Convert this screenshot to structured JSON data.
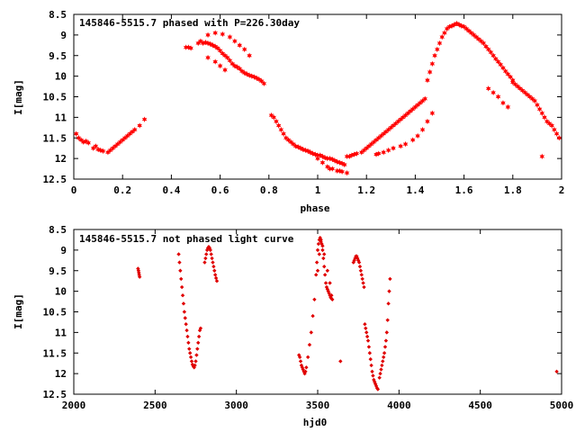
{
  "chart_data": [
    {
      "type": "scatter",
      "title": "145846-5515.7 phased with P=226.30day",
      "xlabel": "phase",
      "ylabel": "I[mag]",
      "xlim": [
        0,
        2
      ],
      "ylim": [
        12.5,
        8.5
      ],
      "y_inverted": true,
      "x_ticks": [
        "0",
        "0.2",
        "0.4",
        "0.6",
        "0.8",
        "1",
        "1.2",
        "1.4",
        "1.6",
        "1.8",
        "2"
      ],
      "y_ticks": [
        "8.5",
        "9",
        "9.5",
        "10",
        "10.5",
        "11",
        "11.5",
        "12",
        "12.5"
      ],
      "marker_color": "#ff0000",
      "grid": false,
      "series": [
        {
          "x": [
            0.01,
            0.02,
            0.03,
            0.04,
            0.05,
            0.06,
            0.08,
            0.09,
            0.1,
            0.11,
            0.12,
            0.14,
            0.15,
            0.16,
            0.17,
            0.18,
            0.19,
            0.2,
            0.21,
            0.22,
            0.23,
            0.24,
            0.25,
            0.27,
            0.29,
            0.46,
            0.47,
            0.48,
            0.51,
            0.52,
            0.53,
            0.54,
            0.55,
            0.56,
            0.57,
            0.58,
            0.59,
            0.6,
            0.61,
            0.62,
            0.63,
            0.64,
            0.65,
            0.66,
            0.67,
            0.68,
            0.69,
            0.7,
            0.71,
            0.72,
            0.73,
            0.74,
            0.75,
            0.76,
            0.77,
            0.78,
            0.55,
            0.58,
            0.61,
            0.64,
            0.66,
            0.68,
            0.7,
            0.72,
            0.55,
            0.58,
            0.6,
            0.62,
            0.81,
            0.82,
            0.83,
            0.84,
            0.85,
            0.86,
            0.87,
            0.88,
            0.89,
            0.9,
            0.91,
            0.92,
            0.93,
            0.94,
            0.95,
            0.96,
            0.97,
            0.98,
            0.99,
            1.0,
            1.01,
            1.02,
            1.03,
            1.04,
            1.05,
            1.06,
            1.07,
            1.08,
            1.09,
            1.1,
            1.11,
            1.0,
            1.02,
            1.04,
            1.06,
            1.08,
            1.1,
            1.12,
            1.05,
            1.09,
            1.12,
            1.13,
            1.14,
            1.15,
            1.16,
            1.18,
            1.19,
            1.2,
            1.21,
            1.22,
            1.23,
            1.24,
            1.25,
            1.26,
            1.27,
            1.28,
            1.29,
            1.3,
            1.31,
            1.32,
            1.33,
            1.34,
            1.35,
            1.36,
            1.37,
            1.38,
            1.39,
            1.4,
            1.41,
            1.42,
            1.43,
            1.44,
            1.24,
            1.25,
            1.27,
            1.29,
            1.31,
            1.34,
            1.36,
            1.39,
            1.41,
            1.43,
            1.45,
            1.47,
            1.45,
            1.46,
            1.47,
            1.48,
            1.49,
            1.5,
            1.51,
            1.52,
            1.53,
            1.54,
            1.55,
            1.56,
            1.57,
            1.58,
            1.59,
            1.6,
            1.61,
            1.62,
            1.63,
            1.64,
            1.65,
            1.66,
            1.67,
            1.68,
            1.69,
            1.7,
            1.71,
            1.72,
            1.73,
            1.74,
            1.75,
            1.76,
            1.77,
            1.78,
            1.79,
            1.8,
            1.8,
            1.81,
            1.82,
            1.83,
            1.84,
            1.85,
            1.86,
            1.87,
            1.88,
            1.89,
            1.9,
            1.91,
            1.92,
            1.93,
            1.94,
            1.95,
            1.96,
            1.97,
            1.98,
            1.99,
            1.7,
            1.72,
            1.74,
            1.76,
            1.78,
            1.92
          ],
          "y": [
            11.4,
            11.5,
            11.55,
            11.6,
            11.58,
            11.62,
            11.75,
            11.7,
            11.78,
            11.8,
            11.82,
            11.85,
            11.8,
            11.75,
            11.7,
            11.65,
            11.6,
            11.55,
            11.5,
            11.45,
            11.4,
            11.35,
            11.3,
            11.2,
            11.05,
            9.3,
            9.3,
            9.32,
            9.2,
            9.15,
            9.2,
            9.18,
            9.2,
            9.22,
            9.25,
            9.28,
            9.32,
            9.38,
            9.45,
            9.5,
            9.55,
            9.62,
            9.7,
            9.75,
            9.78,
            9.82,
            9.88,
            9.92,
            9.95,
            9.98,
            10.0,
            10.02,
            10.05,
            10.08,
            10.12,
            10.18,
            9.0,
            8.95,
            8.98,
            9.05,
            9.15,
            9.25,
            9.35,
            9.5,
            9.55,
            9.65,
            9.75,
            9.85,
            10.95,
            11.0,
            11.1,
            11.2,
            11.3,
            11.4,
            11.5,
            11.55,
            11.6,
            11.65,
            11.7,
            11.72,
            11.75,
            11.78,
            11.8,
            11.82,
            11.85,
            11.88,
            11.9,
            11.92,
            11.92,
            11.95,
            11.98,
            12.0,
            12.0,
            12.02,
            12.05,
            12.08,
            12.1,
            12.12,
            12.15,
            12.0,
            12.1,
            12.2,
            12.25,
            12.3,
            12.32,
            12.35,
            12.25,
            12.3,
            11.95,
            11.95,
            11.92,
            11.9,
            11.88,
            11.85,
            11.8,
            11.75,
            11.7,
            11.65,
            11.6,
            11.55,
            11.5,
            11.45,
            11.4,
            11.35,
            11.3,
            11.25,
            11.2,
            11.15,
            11.1,
            11.05,
            11.0,
            10.95,
            10.9,
            10.85,
            10.8,
            10.75,
            10.7,
            10.65,
            10.6,
            10.55,
            11.9,
            11.88,
            11.85,
            11.8,
            11.75,
            11.7,
            11.65,
            11.55,
            11.45,
            11.3,
            11.1,
            10.9,
            10.1,
            9.9,
            9.7,
            9.5,
            9.35,
            9.2,
            9.05,
            8.95,
            8.85,
            8.8,
            8.78,
            8.75,
            8.72,
            8.75,
            8.78,
            8.8,
            8.85,
            8.9,
            8.95,
            9.0,
            9.05,
            9.1,
            9.15,
            9.2,
            9.28,
            9.35,
            9.42,
            9.5,
            9.58,
            9.65,
            9.72,
            9.8,
            9.88,
            9.95,
            10.02,
            10.1,
            10.15,
            10.2,
            10.25,
            10.3,
            10.35,
            10.4,
            10.45,
            10.5,
            10.55,
            10.6,
            10.7,
            10.8,
            10.9,
            11.0,
            11.1,
            11.15,
            11.2,
            11.3,
            11.4,
            11.5,
            10.3,
            10.4,
            10.5,
            10.65,
            10.75,
            11.95
          ]
        }
      ]
    },
    {
      "type": "scatter",
      "title": "145846-5515.7 not phased light curve",
      "xlabel": "hjd0",
      "ylabel": "I[mag]",
      "xlim": [
        2000,
        5000
      ],
      "ylim": [
        12.5,
        8.5
      ],
      "y_inverted": true,
      "x_ticks": [
        "2000",
        "2500",
        "3000",
        "3500",
        "4000",
        "4500",
        "5000"
      ],
      "y_ticks": [
        "8.5",
        "9",
        "9.5",
        "10",
        "10.5",
        "11",
        "11.5",
        "12",
        "12.5"
      ],
      "marker_color": "#e00000",
      "grid": false,
      "series": [
        {
          "x": [
            2395,
            2398,
            2400,
            2402,
            2405,
            2645,
            2650,
            2655,
            2660,
            2665,
            2670,
            2675,
            2680,
            2685,
            2690,
            2695,
            2700,
            2705,
            2710,
            2715,
            2720,
            2725,
            2730,
            2735,
            2740,
            2745,
            2750,
            2755,
            2760,
            2765,
            2770,
            2775,
            2780,
            2805,
            2810,
            2815,
            2820,
            2825,
            2830,
            2835,
            2840,
            2845,
            2850,
            2855,
            2860,
            2865,
            2870,
            2875,
            2880,
            3385,
            3390,
            3395,
            3400,
            3405,
            3410,
            3415,
            3420,
            3425,
            3430,
            3440,
            3450,
            3460,
            3470,
            3480,
            3490,
            3495,
            3500,
            3505,
            3510,
            3515,
            3520,
            3525,
            3530,
            3535,
            3540,
            3545,
            3550,
            3555,
            3560,
            3565,
            3570,
            3575,
            3580,
            3585,
            3590,
            3500,
            3510,
            3520,
            3530,
            3540,
            3560,
            3575,
            3585,
            3640,
            3720,
            3725,
            3730,
            3735,
            3740,
            3745,
            3750,
            3755,
            3760,
            3765,
            3770,
            3775,
            3780,
            3785,
            3790,
            3795,
            3800,
            3805,
            3810,
            3815,
            3820,
            3825,
            3830,
            3835,
            3840,
            3845,
            3850,
            3855,
            3860,
            3865,
            3870,
            3880,
            3885,
            3890,
            3895,
            3900,
            3905,
            3910,
            3915,
            3920,
            3925,
            3930,
            3935,
            3940,
            3945,
            4970
          ],
          "y": [
            9.45,
            9.5,
            9.55,
            9.6,
            9.65,
            9.1,
            9.3,
            9.5,
            9.7,
            9.9,
            10.1,
            10.3,
            10.5,
            10.65,
            10.8,
            10.95,
            11.1,
            11.25,
            11.4,
            11.5,
            11.6,
            11.7,
            11.78,
            11.82,
            11.85,
            11.8,
            11.7,
            11.55,
            11.4,
            11.25,
            11.1,
            10.95,
            10.9,
            9.3,
            9.2,
            9.1,
            9.0,
            8.95,
            8.92,
            8.95,
            9.0,
            9.1,
            9.2,
            9.3,
            9.4,
            9.5,
            9.6,
            9.68,
            9.75,
            11.55,
            11.6,
            11.7,
            11.8,
            11.85,
            11.9,
            11.95,
            12.0,
            11.95,
            11.85,
            11.6,
            11.3,
            11.0,
            10.6,
            10.2,
            9.6,
            9.3,
            9.0,
            8.85,
            8.75,
            8.7,
            8.75,
            8.85,
            9.0,
            9.2,
            9.4,
            9.6,
            9.8,
            9.9,
            9.95,
            10.0,
            10.05,
            10.1,
            10.15,
            10.18,
            10.2,
            9.5,
            9.1,
            8.8,
            8.9,
            9.1,
            9.5,
            9.8,
            10.1,
            11.7,
            9.3,
            9.25,
            9.2,
            9.15,
            9.15,
            9.2,
            9.25,
            9.3,
            9.4,
            9.5,
            9.6,
            9.7,
            9.8,
            9.9,
            10.8,
            10.9,
            11.0,
            11.1,
            11.2,
            11.35,
            11.5,
            11.65,
            11.8,
            11.95,
            12.05,
            12.15,
            12.2,
            12.25,
            12.3,
            12.35,
            12.38,
            12.1,
            12.0,
            11.9,
            11.8,
            11.7,
            11.6,
            11.5,
            11.35,
            11.2,
            11.0,
            10.7,
            10.3,
            10.0,
            9.7,
            11.95
          ]
        }
      ]
    }
  ]
}
